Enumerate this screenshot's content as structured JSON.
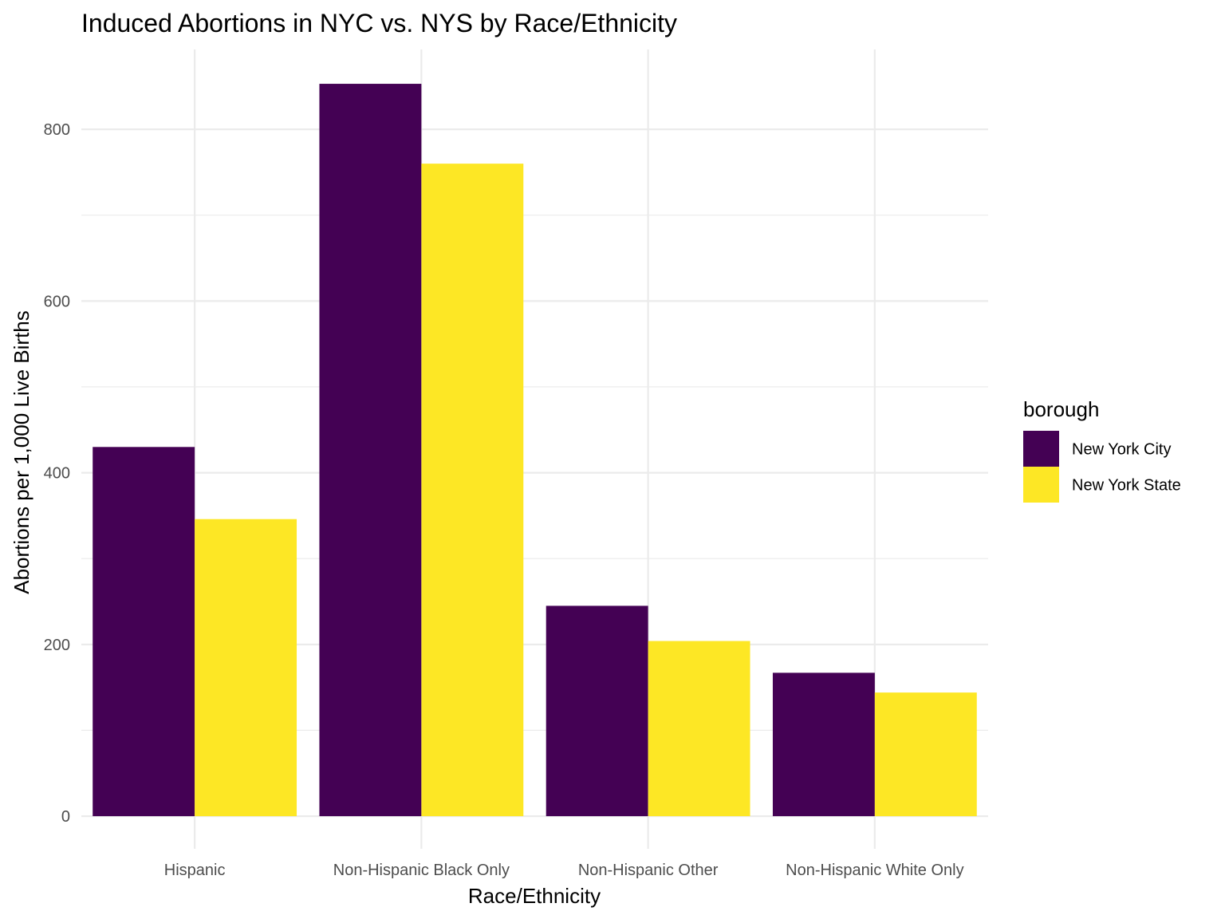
{
  "chart_data": {
    "type": "bar",
    "title": "Induced Abortions in NYC vs. NYS by Race/Ethnicity",
    "xlabel": "Race/Ethnicity",
    "ylabel": "Abortions per 1,000 Live Births",
    "categories": [
      "Hispanic",
      "Non-Hispanic Black Only",
      "Non-Hispanic Other",
      "Non-Hispanic White Only"
    ],
    "series": [
      {
        "name": "New York City",
        "color": "#440154",
        "values": [
          430,
          853,
          245,
          167
        ]
      },
      {
        "name": "New York State",
        "color": "#FDE725",
        "values": [
          346,
          760,
          204,
          144
        ]
      }
    ],
    "ylim": [
      -38,
      893
    ],
    "yticks": [
      0,
      200,
      400,
      600,
      800
    ],
    "yticks_minor": [
      100,
      300,
      500,
      700
    ],
    "grid": true,
    "legend": {
      "title": "borough",
      "placement": "right"
    }
  }
}
